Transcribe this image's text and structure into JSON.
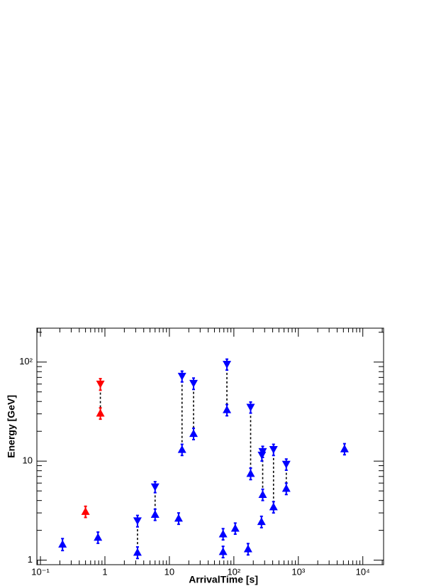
{
  "chart_data": {
    "type": "scatter",
    "x_label": "ArrivalTime [s]",
    "y_label": "Energy [GeV]",
    "xscale": "log",
    "yscale": "log",
    "xlim": [
      0.088,
      21000
    ],
    "ylim": [
      0.9,
      220
    ],
    "xticks": [
      {
        "value": 0.1,
        "label": "10⁻¹"
      },
      1,
      10,
      {
        "value": 100,
        "label": "10²"
      },
      {
        "value": 1000,
        "label": "10³"
      },
      {
        "value": 10000,
        "label": "10⁴"
      }
    ],
    "yticks": [
      1,
      10,
      {
        "value": 100,
        "label": "10²"
      }
    ],
    "series": [
      {
        "color": "#ff0000",
        "marker": "triangle-up",
        "x": [
          0.5,
          0.85
        ],
        "values": [
          3.1,
          30.5
        ],
        "yerr": [
          0.4,
          4
        ]
      },
      {
        "color": "#ff0000",
        "marker": "triangle-down",
        "x": [
          0.85
        ],
        "values": [
          60
        ],
        "yerr": [
          8
        ]
      },
      {
        "color": "#0000ff",
        "marker": "triangle-up",
        "x": [
          0.22,
          0.78,
          3.2,
          6.0,
          13.9,
          15.7,
          23.7,
          68,
          68,
          78,
          105,
          166,
          182,
          268,
          280,
          412,
          650,
          5200
        ],
        "values": [
          1.45,
          1.7,
          1.2,
          2.9,
          2.65,
          13.1,
          19,
          1.84,
          1.22,
          33,
          2.1,
          1.3,
          7.5,
          2.45,
          4.6,
          3.45,
          5.3,
          13.3
        ],
        "yerr": [
          0.2,
          0.22,
          0.16,
          0.38,
          0.35,
          1.7,
          2.5,
          0.24,
          0.16,
          4.3,
          0.27,
          0.17,
          1,
          0.32,
          0.6,
          0.45,
          0.7,
          1.7
        ]
      },
      {
        "color": "#0000ff",
        "marker": "triangle-down",
        "x": [
          3.2,
          6.0,
          15.7,
          23.7,
          78,
          182,
          272,
          280,
          412,
          650
        ],
        "values": [
          2.5,
          5.5,
          72,
          61,
          95,
          35,
          11.5,
          12.5,
          13.1,
          9.3
        ],
        "yerr": [
          0.33,
          0.7,
          9,
          8,
          12,
          4.5,
          1.5,
          1.6,
          1.7,
          1.2
        ]
      }
    ]
  }
}
